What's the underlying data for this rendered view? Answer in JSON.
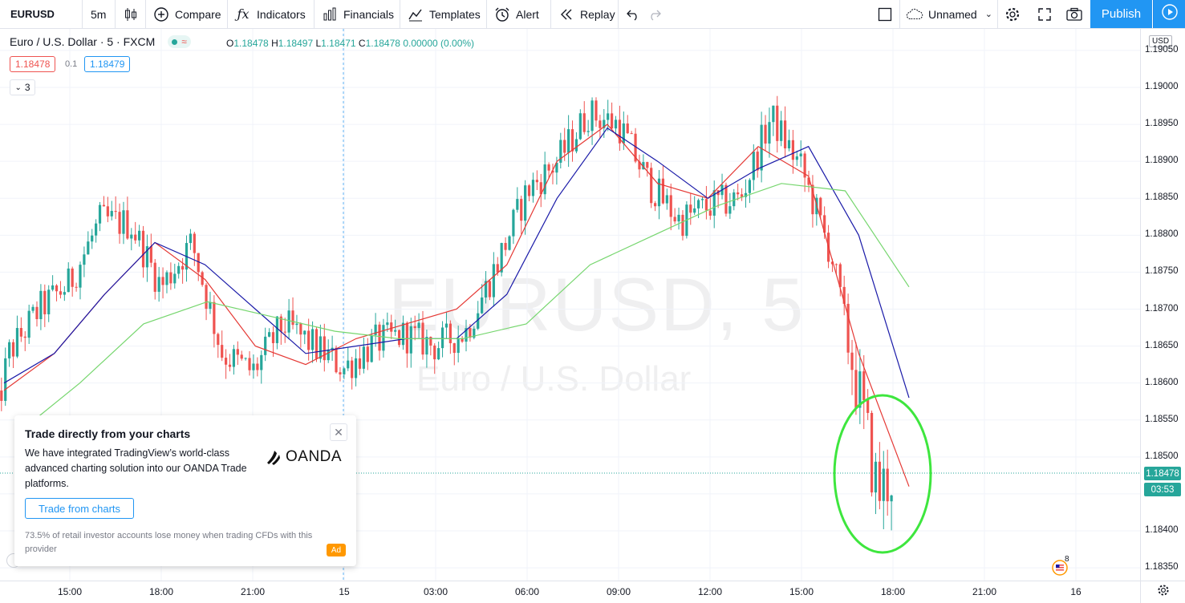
{
  "toolbar": {
    "symbol": "EURUSD",
    "interval": "5m",
    "compare": "Compare",
    "indicators": "Indicators",
    "financials": "Financials",
    "templates": "Templates",
    "alert": "Alert",
    "replay": "Replay",
    "layout_name": "Unnamed",
    "publish": "Publish"
  },
  "legend": {
    "title": "Euro / U.S. Dollar · 5 · FXCM",
    "o_label": "O",
    "o": "1.18478",
    "h_label": "H",
    "h": "1.18497",
    "l_label": "L",
    "l": "1.18471",
    "c_label": "C",
    "c": "1.18478",
    "change": "0.00000 (0.00%)",
    "bid": "1.18478",
    "spread": "0.1",
    "ask": "1.18479",
    "indicator_count": "3"
  },
  "watermark": {
    "line1": "EURUSD, 5",
    "line2": "Euro / U.S. Dollar"
  },
  "price_axis": {
    "currency": "USD",
    "ticks": [
      "1.19050",
      "1.19000",
      "1.18950",
      "1.18900",
      "1.18850",
      "1.18800",
      "1.18750",
      "1.18700",
      "1.18650",
      "1.18600",
      "1.18550",
      "1.18500",
      "1.18450",
      "1.18400",
      "1.18350"
    ],
    "last_price": "1.18478",
    "countdown": "03:53"
  },
  "time_axis": {
    "ticks": [
      "15:00",
      "18:00",
      "21:00",
      "15",
      "03:00",
      "06:00",
      "09:00",
      "12:00",
      "15:00",
      "18:00",
      "21:00",
      "16"
    ]
  },
  "events_badge": "8",
  "ad": {
    "title": "Trade directly from your charts",
    "body": "We have integrated TradingView’s world-class advanced charting solution into our OANDA Trade platforms.",
    "button": "Trade from charts",
    "disclaimer": "73.5% of retail investor accounts lose money when trading CFDs with this provider",
    "tag": "Ad",
    "brand": "OANDA"
  },
  "colors": {
    "up": "#26a69a",
    "down": "#ef5350",
    "ma_fast": "#e53935",
    "ma_mid": "#1a1aa8",
    "ma_slow": "#76d66e",
    "highlight": "#3ee63e",
    "accent": "#2196f3"
  },
  "chart_data": {
    "type": "candlestick",
    "symbol": "EURUSD",
    "timeframe": "5",
    "ylim": [
      1.1834,
      1.19065
    ],
    "x_range_hours": [
      "14 12:30",
      "16 02:00"
    ],
    "price_path": [
      {
        "t": "14 12:30",
        "p": 1.1854
      },
      {
        "t": "14 13:00",
        "p": 1.1864
      },
      {
        "t": "14 14:00",
        "p": 1.187
      },
      {
        "t": "14 15:00",
        "p": 1.18735
      },
      {
        "t": "14 16:00",
        "p": 1.1882
      },
      {
        "t": "14 17:00",
        "p": 1.18815
      },
      {
        "t": "14 18:00",
        "p": 1.1873
      },
      {
        "t": "14 19:00",
        "p": 1.1879
      },
      {
        "t": "14 20:00",
        "p": 1.1864
      },
      {
        "t": "14 21:00",
        "p": 1.18615
      },
      {
        "t": "14 22:00",
        "p": 1.1868
      },
      {
        "t": "14 23:00",
        "p": 1.1865
      },
      {
        "t": "15 00:00",
        "p": 1.1862
      },
      {
        "t": "15 01:00",
        "p": 1.18655
      },
      {
        "t": "15 02:00",
        "p": 1.18665
      },
      {
        "t": "15 03:00",
        "p": 1.1865
      },
      {
        "t": "15 04:00",
        "p": 1.1867
      },
      {
        "t": "15 05:00",
        "p": 1.1876
      },
      {
        "t": "15 06:00",
        "p": 1.1886
      },
      {
        "t": "15 07:00",
        "p": 1.189
      },
      {
        "t": "15 08:00",
        "p": 1.18965
      },
      {
        "t": "15 09:00",
        "p": 1.1895
      },
      {
        "t": "15 10:00",
        "p": 1.1887
      },
      {
        "t": "15 11:00",
        "p": 1.1882
      },
      {
        "t": "15 12:00",
        "p": 1.1884
      },
      {
        "t": "15 13:00",
        "p": 1.1885
      },
      {
        "t": "15 14:00",
        "p": 1.1896
      },
      {
        "t": "15 15:00",
        "p": 1.1889
      },
      {
        "t": "15 16:00",
        "p": 1.1877
      },
      {
        "t": "15 17:00",
        "p": 1.1856
      },
      {
        "t": "15 17:30",
        "p": 1.1845
      },
      {
        "t": "15 18:00",
        "p": 1.18478
      }
    ],
    "series": [
      {
        "values": [
          1.1859,
          1.1864,
          1.1872,
          1.1879,
          1.1874,
          1.1865,
          1.18625,
          1.1866,
          1.1868,
          1.187,
          1.1876,
          1.189,
          1.1895,
          1.1887,
          1.1885,
          1.1892,
          1.1888,
          1.1864,
          1.1846
        ]
      },
      {
        "values": [
          1.186,
          1.1864,
          1.1872,
          1.1879,
          1.1876,
          1.187,
          1.1864,
          1.1865,
          1.1866,
          1.1866,
          1.1872,
          1.1885,
          1.18945,
          1.189,
          1.1885,
          1.1889,
          1.1892,
          1.188,
          1.1858
        ]
      },
      {
        "values": [
          1.1853,
          1.186,
          1.1868,
          1.1871,
          1.1869,
          1.1867,
          1.1866,
          1.1866,
          1.1868,
          1.1876,
          1.188,
          1.1884,
          1.1887,
          1.1886,
          1.1873
        ]
      }
    ]
  }
}
